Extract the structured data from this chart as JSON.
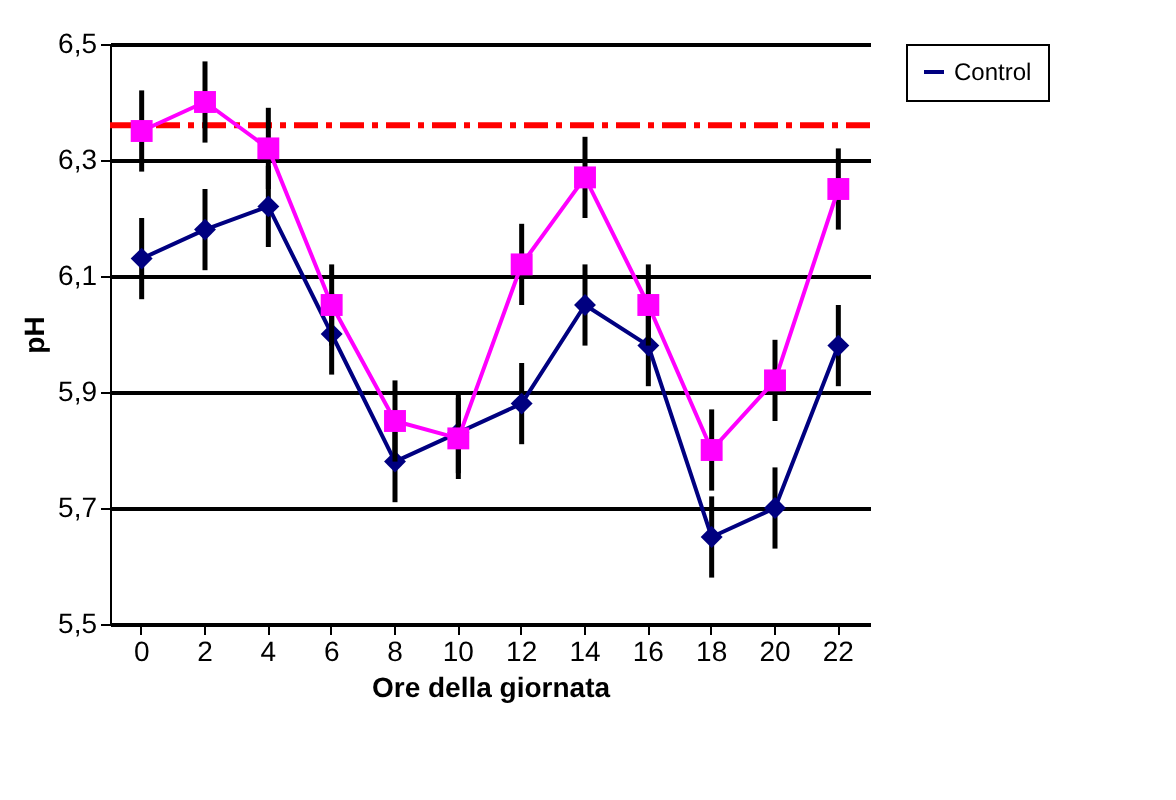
{
  "chart_data": {
    "type": "line",
    "xlabel": "Ore della giornata",
    "ylabel": "pH",
    "categories": [
      "0",
      "2",
      "4",
      "6",
      "8",
      "10",
      "12",
      "14",
      "16",
      "18",
      "20",
      "22"
    ],
    "series": [
      {
        "name": "Control",
        "color": "#000080",
        "marker": "diamond",
        "values": [
          6.13,
          6.18,
          6.22,
          6.0,
          5.78,
          5.83,
          5.88,
          6.05,
          5.98,
          5.65,
          5.7,
          5.98
        ],
        "errors": [
          0.07,
          0.07,
          0.07,
          0.07,
          0.07,
          0.07,
          0.07,
          0.07,
          0.07,
          0.07,
          0.07,
          0.07
        ]
      },
      {
        "color": "#ff00ff",
        "marker": "square",
        "values": [
          6.35,
          6.4,
          6.32,
          6.05,
          5.85,
          5.82,
          6.12,
          6.27,
          6.05,
          5.8,
          5.92,
          6.25
        ],
        "errors": [
          0.07,
          0.07,
          0.07,
          0.07,
          0.07,
          0.07,
          0.07,
          0.07,
          0.07,
          0.07,
          0.07,
          0.07
        ]
      }
    ],
    "ylim": [
      5.5,
      6.5
    ],
    "yticks": [
      {
        "value": 5.5,
        "label": "5,5"
      },
      {
        "value": 5.7,
        "label": "5,7"
      },
      {
        "value": 5.9,
        "label": "5,9"
      },
      {
        "value": 6.1,
        "label": "6,1"
      },
      {
        "value": 6.3,
        "label": "6,3"
      },
      {
        "value": 6.5,
        "label": "6,5"
      }
    ],
    "ref_lines": [
      {
        "axis": "y",
        "value": 6.36,
        "color": "#ff0000",
        "line_style": "dashed"
      }
    ],
    "grid": "y",
    "legend": "right",
    "line_style": "solid"
  }
}
